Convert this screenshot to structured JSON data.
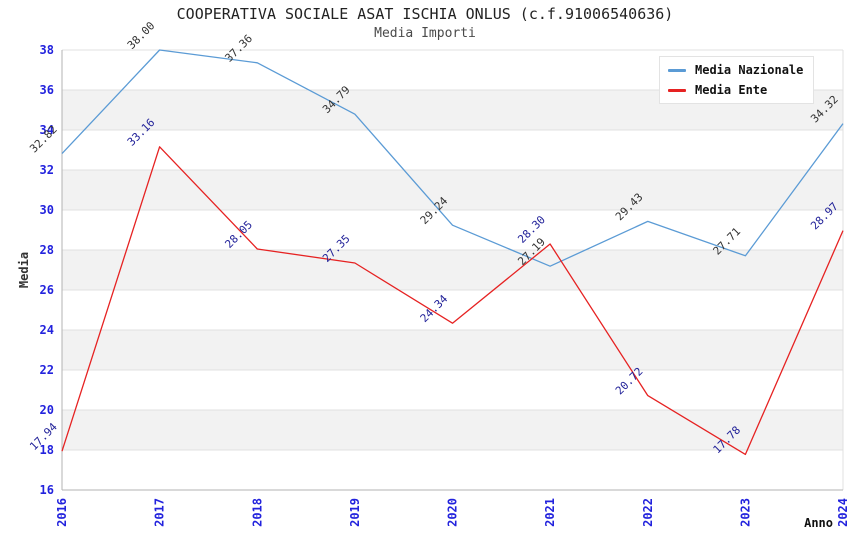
{
  "chart_data": {
    "type": "line",
    "title": "COOPERATIVA SOCIALE ASAT ISCHIA ONLUS (c.f.91006540636)",
    "subtitle": "Media Importi",
    "xlabel": "Anno",
    "ylabel": "Media",
    "categories": [
      "2016",
      "2017",
      "2018",
      "2019",
      "2020",
      "2021",
      "2022",
      "2023",
      "2024"
    ],
    "yticks": [
      16,
      18,
      20,
      22,
      24,
      26,
      28,
      30,
      32,
      34,
      36,
      38
    ],
    "ylim": [
      16,
      38
    ],
    "grid": "horizontal-bands",
    "legend_position": "top-right",
    "value_label_decimals": 2,
    "series": [
      {
        "name": "Media Nazionale",
        "color": "#5b9bd5",
        "label_color": "#333333",
        "values": [
          32.82,
          38.0,
          37.36,
          34.79,
          29.24,
          27.19,
          29.43,
          27.71,
          34.32
        ]
      },
      {
        "name": "Media Ente",
        "color": "#e62222",
        "label_color": "#222299",
        "values": [
          17.94,
          33.16,
          28.05,
          27.35,
          24.34,
          28.3,
          20.72,
          17.78,
          28.97
        ]
      }
    ],
    "colors": {
      "band": "#f2f2f2",
      "grid": "#e0e0e0",
      "axis": "#b3b3b3",
      "tick_label": "#2222dd"
    }
  }
}
